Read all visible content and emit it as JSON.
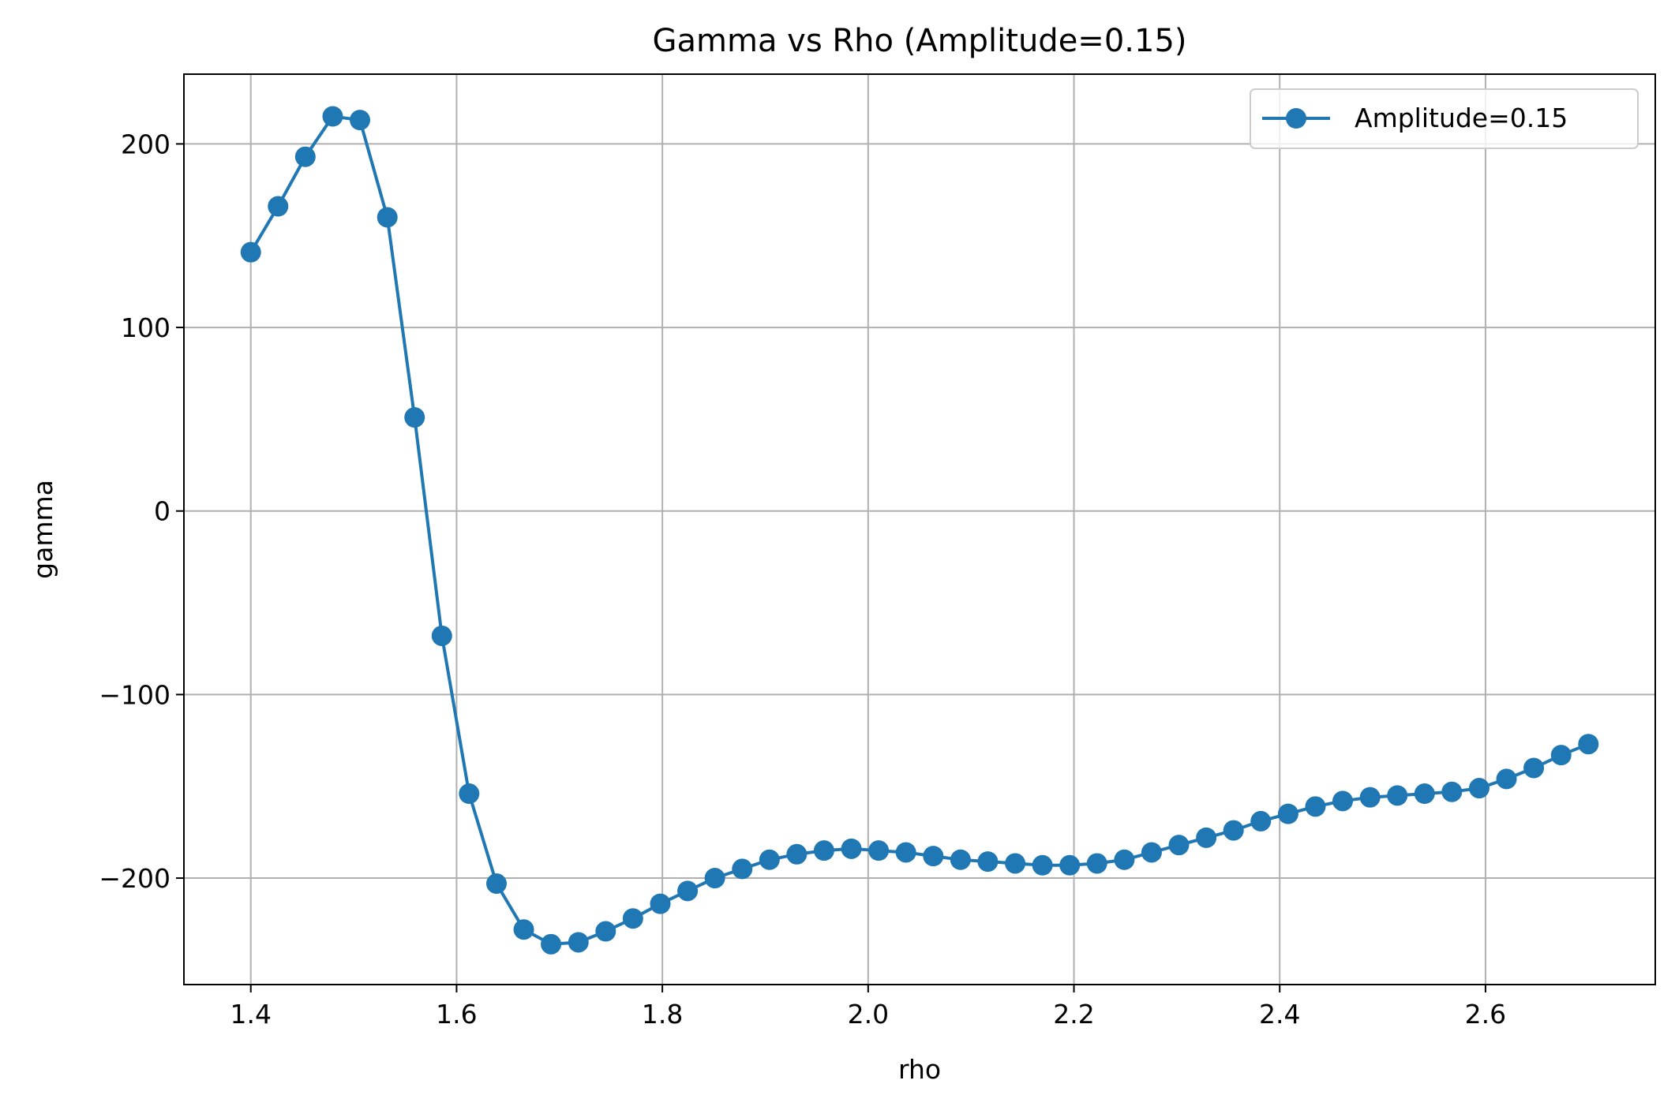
{
  "chart_data": {
    "type": "line",
    "title": "Gamma vs Rho (Amplitude=0.15)",
    "xlabel": "rho",
    "ylabel": "gamma",
    "xlim": [
      1.335,
      2.765
    ],
    "ylim": [
      -258,
      238
    ],
    "xticks": [
      1.4,
      1.6,
      1.8,
      2.0,
      2.2,
      2.4,
      2.6
    ],
    "xtick_labels": [
      "1.4",
      "1.6",
      "1.8",
      "2.0",
      "2.2",
      "2.4",
      "2.6"
    ],
    "yticks": [
      200,
      100,
      0,
      -100,
      -200
    ],
    "ytick_labels": [
      "200",
      "100",
      "0",
      "−100",
      "−200"
    ],
    "grid": true,
    "legend_position": "top-right",
    "series": [
      {
        "name": "Amplitude=0.15",
        "color": "#1f77b4",
        "marker": "circle",
        "x": [
          1.4,
          1.4265,
          1.453,
          1.4796,
          1.5061,
          1.5327,
          1.5592,
          1.5857,
          1.6122,
          1.6388,
          1.6653,
          1.6918,
          1.7184,
          1.7449,
          1.7714,
          1.798,
          1.8245,
          1.851,
          1.8776,
          1.9041,
          1.9306,
          1.9571,
          1.9837,
          2.0102,
          2.0367,
          2.0633,
          2.0898,
          2.1163,
          2.1429,
          2.1694,
          2.1959,
          2.2224,
          2.249,
          2.2755,
          2.302,
          2.3286,
          2.3551,
          2.3816,
          2.4082,
          2.4347,
          2.4612,
          2.4878,
          2.5143,
          2.5408,
          2.5673,
          2.5939,
          2.6204,
          2.6469,
          2.6735,
          2.7
        ],
        "y": [
          141,
          166,
          193,
          215,
          213,
          160,
          51,
          -68,
          -154,
          -203,
          -228,
          -236,
          -235,
          -229,
          -222,
          -214,
          -207,
          -200,
          -195,
          -190,
          -187,
          -185,
          -184,
          -185,
          -186,
          -188,
          -190,
          -191,
          -192,
          -193,
          -193,
          -192,
          -190,
          -186,
          -182,
          -178,
          -174,
          -169,
          -165,
          -161,
          -158,
          -156,
          -155,
          -154,
          -153,
          -151,
          -146,
          -140,
          -133,
          -127
        ]
      }
    ]
  }
}
